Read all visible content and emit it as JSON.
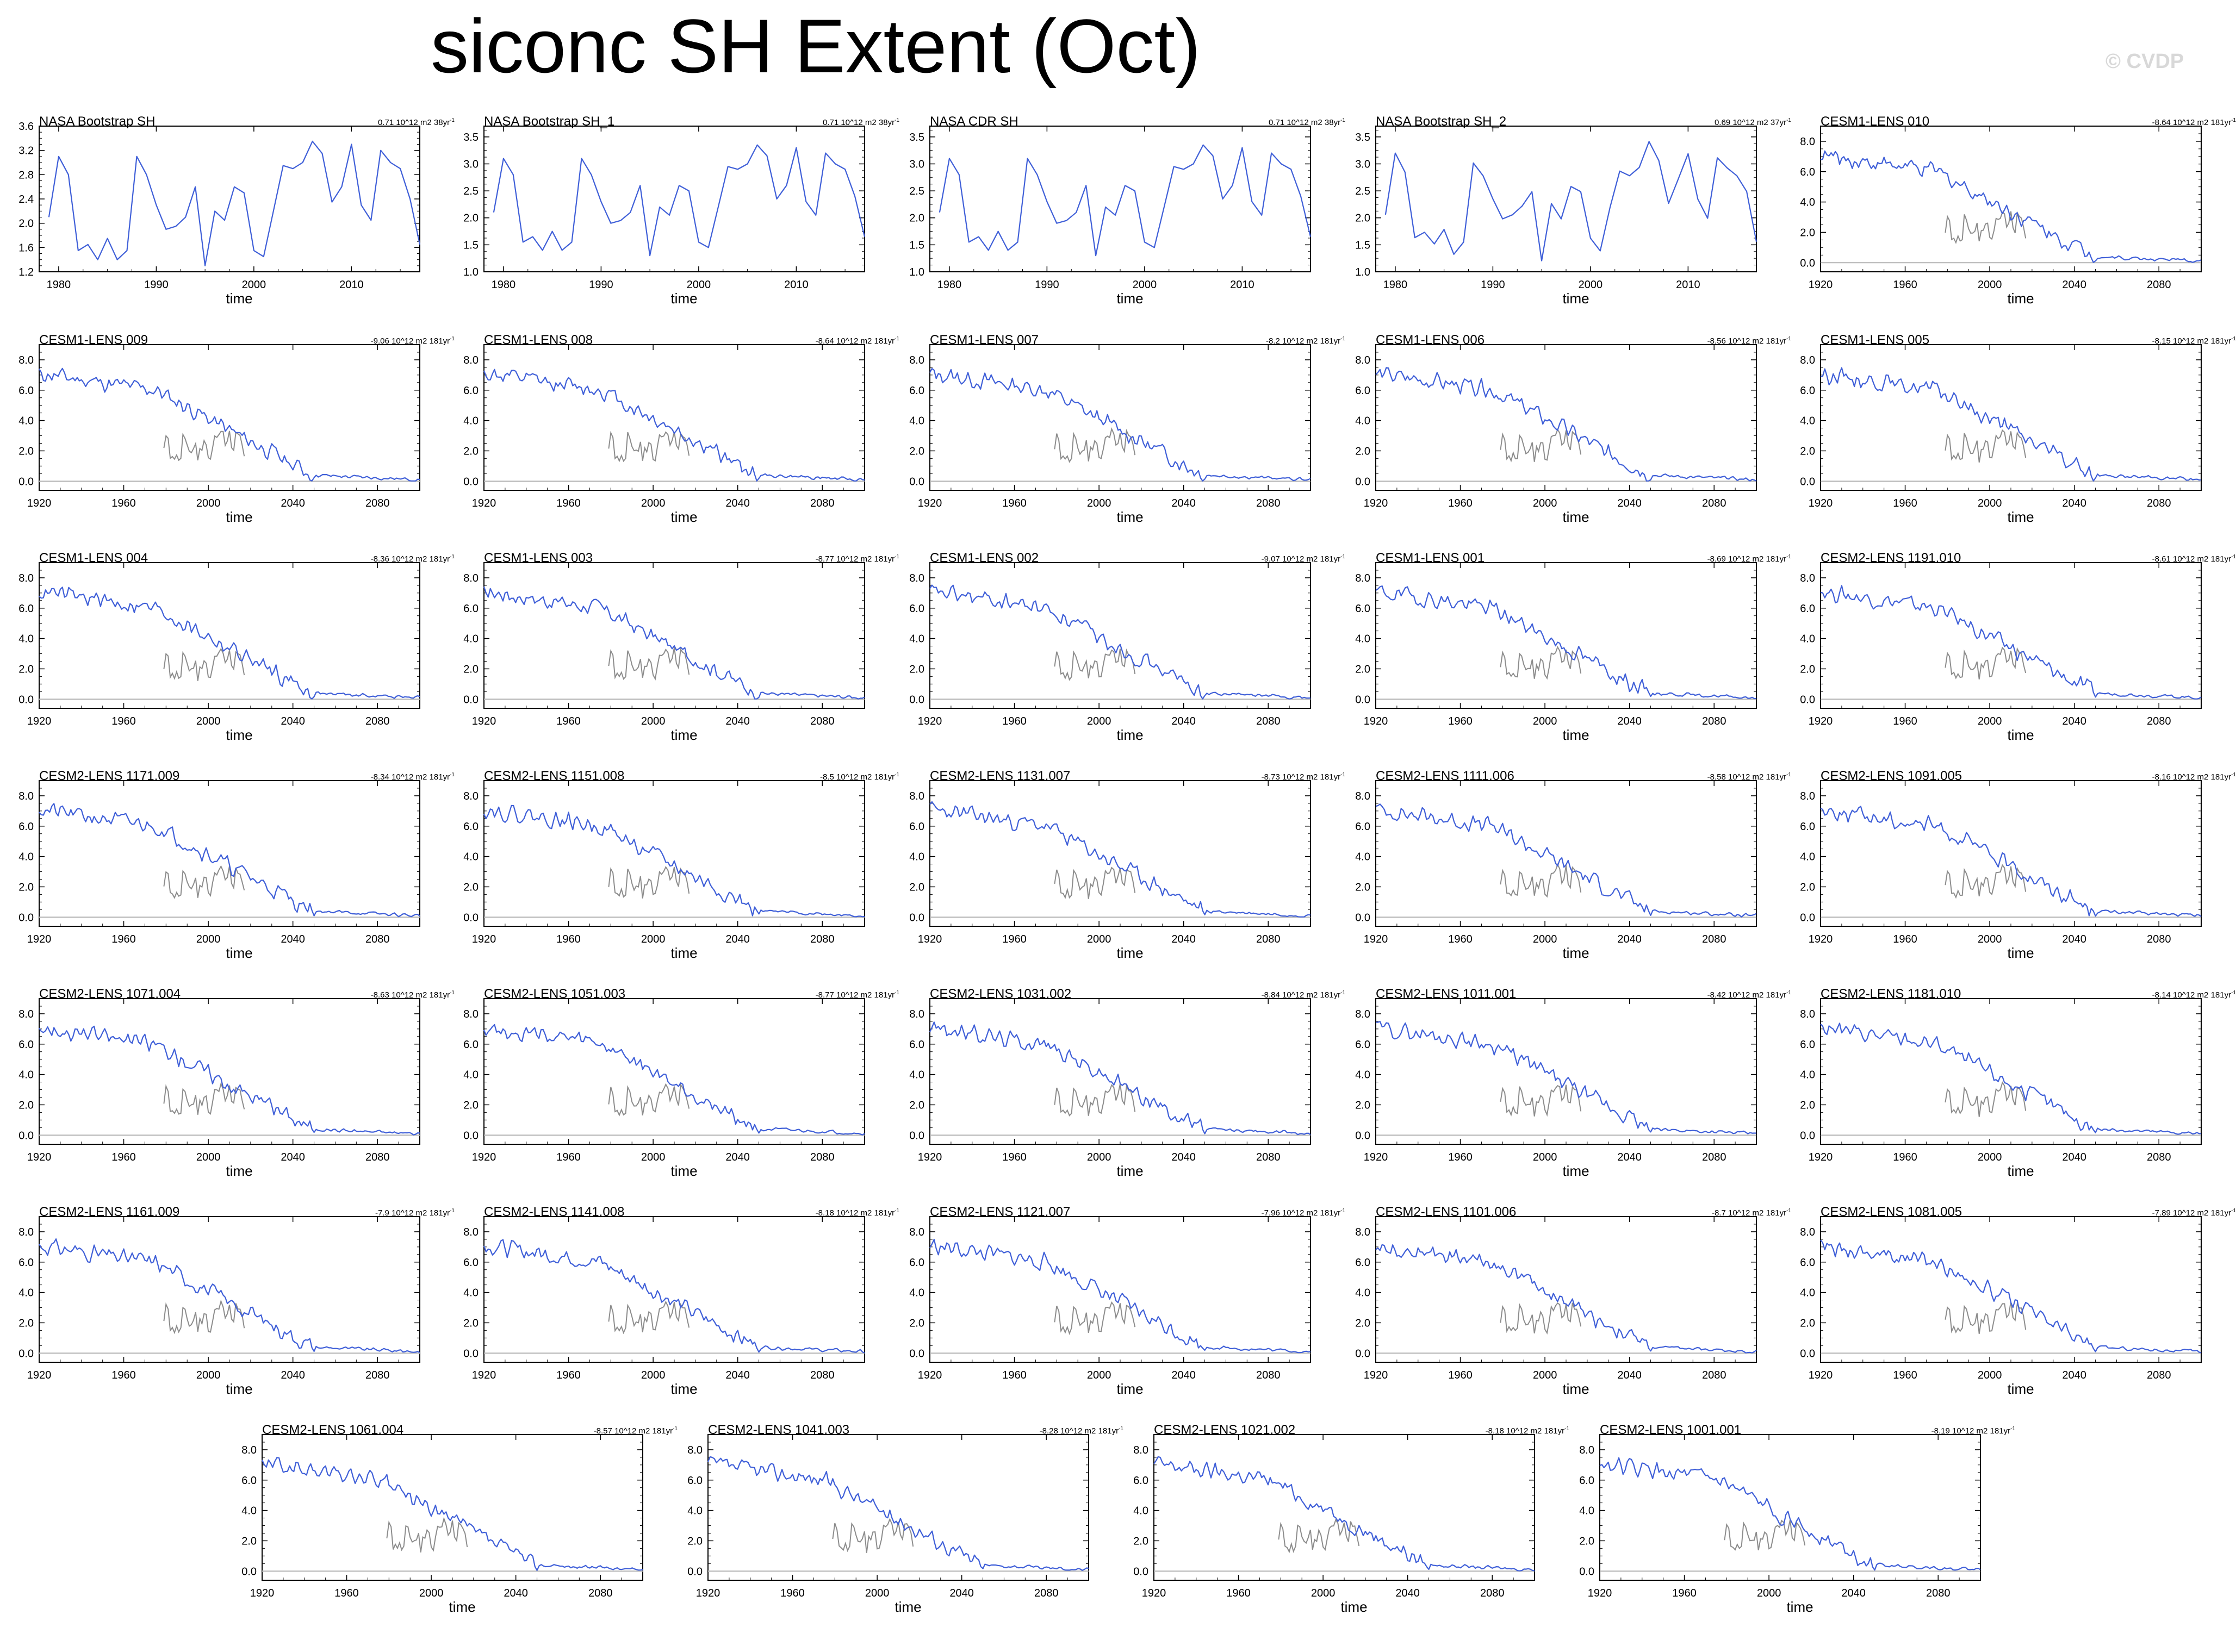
{
  "page": {
    "title": "siconc SH Extent (Oct)",
    "watermark": "© CVDP"
  },
  "chart_data": [
    {
      "type": "line",
      "title": "NASA Bootstrap SH",
      "trend": "0.71 10^12 m2 38yr",
      "trend_sup": "-1",
      "xlabel": "time",
      "xlim": [
        1978,
        2017
      ],
      "ylim": [
        1.2,
        3.6
      ],
      "yticks": [
        1.2,
        1.6,
        2.0,
        2.4,
        2.8,
        3.2,
        3.6
      ],
      "yfmt": 1,
      "xticks": [
        1980,
        1990,
        2000,
        2010
      ],
      "obs": true,
      "seed": 1
    },
    {
      "type": "line",
      "title": "NASA Bootstrap SH_1",
      "trend": "0.71 10^12 m2 38yr",
      "trend_sup": "-1",
      "xlabel": "time",
      "xlim": [
        1978,
        2017
      ],
      "ylim": [
        1.0,
        3.7
      ],
      "yticks": [
        1.0,
        1.5,
        2.0,
        2.5,
        3.0,
        3.5
      ],
      "yfmt": 1,
      "xticks": [
        1980,
        1990,
        2000,
        2010
      ],
      "obs": true,
      "seed": 1
    },
    {
      "type": "line",
      "title": "NASA CDR SH",
      "trend": "0.71 10^12 m2 38yr",
      "trend_sup": "-1",
      "xlabel": "time",
      "xlim": [
        1978,
        2017
      ],
      "ylim": [
        1.0,
        3.7
      ],
      "yticks": [
        1.0,
        1.5,
        2.0,
        2.5,
        3.0,
        3.5
      ],
      "yfmt": 1,
      "xticks": [
        1980,
        1990,
        2000,
        2010
      ],
      "obs": true,
      "seed": 1
    },
    {
      "type": "line",
      "title": "NASA Bootstrap SH_2",
      "trend": "0.69 10^12 m2 37yr",
      "trend_sup": "-1",
      "xlabel": "time",
      "xlim": [
        1978,
        2017
      ],
      "ylim": [
        1.0,
        3.7
      ],
      "yticks": [
        1.0,
        1.5,
        2.0,
        2.5,
        3.0,
        3.5
      ],
      "yfmt": 1,
      "xticks": [
        1980,
        1990,
        2000,
        2010
      ],
      "obs": true,
      "seed": 2
    },
    {
      "type": "line",
      "title": "CESM1-LENS 010",
      "trend": "-8.64 10^12 m2 181yr",
      "trend_sup": "-1",
      "xlabel": "time",
      "xlim": [
        1920,
        2100
      ],
      "ylim": [
        -0.6,
        9.0
      ],
      "yticks": [
        0.0,
        2.0,
        4.0,
        6.0,
        8.0
      ],
      "yfmt": 1,
      "xticks": [
        1920,
        1960,
        2000,
        2040,
        2080
      ],
      "obs": false,
      "seed": 10
    },
    {
      "type": "line",
      "title": "CESM1-LENS 009",
      "trend": "-9.06 10^12 m2 181yr",
      "trend_sup": "-1",
      "xlabel": "time",
      "xlim": [
        1920,
        2100
      ],
      "ylim": [
        -0.6,
        9.0
      ],
      "yticks": [
        0.0,
        2.0,
        4.0,
        6.0,
        8.0
      ],
      "yfmt": 1,
      "xticks": [
        1920,
        1960,
        2000,
        2040,
        2080
      ],
      "obs": false,
      "seed": 11
    },
    {
      "type": "line",
      "title": "CESM1-LENS 008",
      "trend": "-8.64 10^12 m2 181yr",
      "trend_sup": "-1",
      "xlabel": "time",
      "xlim": [
        1920,
        2100
      ],
      "ylim": [
        -0.6,
        9.0
      ],
      "yticks": [
        0.0,
        2.0,
        4.0,
        6.0,
        8.0
      ],
      "yfmt": 1,
      "xticks": [
        1920,
        1960,
        2000,
        2040,
        2080
      ],
      "obs": false,
      "seed": 12
    },
    {
      "type": "line",
      "title": "CESM1-LENS 007",
      "trend": "-8.2 10^12 m2 181yr",
      "trend_sup": "-1",
      "xlabel": "time",
      "xlim": [
        1920,
        2100
      ],
      "ylim": [
        -0.6,
        9.0
      ],
      "yticks": [
        0.0,
        2.0,
        4.0,
        6.0,
        8.0
      ],
      "yfmt": 1,
      "xticks": [
        1920,
        1960,
        2000,
        2040,
        2080
      ],
      "obs": false,
      "seed": 13
    },
    {
      "type": "line",
      "title": "CESM1-LENS 006",
      "trend": "-8.56 10^12 m2 181yr",
      "trend_sup": "-1",
      "xlabel": "time",
      "xlim": [
        1920,
        2100
      ],
      "ylim": [
        -0.6,
        9.0
      ],
      "yticks": [
        0.0,
        2.0,
        4.0,
        6.0,
        8.0
      ],
      "yfmt": 1,
      "xticks": [
        1920,
        1960,
        2000,
        2040,
        2080
      ],
      "obs": false,
      "seed": 14
    },
    {
      "type": "line",
      "title": "CESM1-LENS 005",
      "trend": "-8.15 10^12 m2 181yr",
      "trend_sup": "-1",
      "xlabel": "time",
      "xlim": [
        1920,
        2100
      ],
      "ylim": [
        -0.6,
        9.0
      ],
      "yticks": [
        0.0,
        2.0,
        4.0,
        6.0,
        8.0
      ],
      "yfmt": 1,
      "xticks": [
        1920,
        1960,
        2000,
        2040,
        2080
      ],
      "obs": false,
      "seed": 15
    },
    {
      "type": "line",
      "title": "CESM1-LENS 004",
      "trend": "-8.36 10^12 m2 181yr",
      "trend_sup": "-1",
      "xlabel": "time",
      "xlim": [
        1920,
        2100
      ],
      "ylim": [
        -0.6,
        9.0
      ],
      "yticks": [
        0.0,
        2.0,
        4.0,
        6.0,
        8.0
      ],
      "yfmt": 1,
      "xticks": [
        1920,
        1960,
        2000,
        2040,
        2080
      ],
      "obs": false,
      "seed": 16
    },
    {
      "type": "line",
      "title": "CESM1-LENS 003",
      "trend": "-8.77 10^12 m2 181yr",
      "trend_sup": "-1",
      "xlabel": "time",
      "xlim": [
        1920,
        2100
      ],
      "ylim": [
        -0.6,
        9.0
      ],
      "yticks": [
        0.0,
        2.0,
        4.0,
        6.0,
        8.0
      ],
      "yfmt": 1,
      "xticks": [
        1920,
        1960,
        2000,
        2040,
        2080
      ],
      "obs": false,
      "seed": 17
    },
    {
      "type": "line",
      "title": "CESM1-LENS 002",
      "trend": "-9.07 10^12 m2 181yr",
      "trend_sup": "-1",
      "xlabel": "time",
      "xlim": [
        1920,
        2100
      ],
      "ylim": [
        -0.6,
        9.0
      ],
      "yticks": [
        0.0,
        2.0,
        4.0,
        6.0,
        8.0
      ],
      "yfmt": 1,
      "xticks": [
        1920,
        1960,
        2000,
        2040,
        2080
      ],
      "obs": false,
      "seed": 18
    },
    {
      "type": "line",
      "title": "CESM1-LENS 001",
      "trend": "-8.69 10^12 m2 181yr",
      "trend_sup": "-1",
      "xlabel": "time",
      "xlim": [
        1920,
        2100
      ],
      "ylim": [
        -0.6,
        9.0
      ],
      "yticks": [
        0.0,
        2.0,
        4.0,
        6.0,
        8.0
      ],
      "yfmt": 1,
      "xticks": [
        1920,
        1960,
        2000,
        2040,
        2080
      ],
      "obs": false,
      "seed": 19
    },
    {
      "type": "line",
      "title": "CESM2-LENS 1191.010",
      "trend": "-8.61 10^12 m2 181yr",
      "trend_sup": "-1",
      "xlabel": "time",
      "xlim": [
        1920,
        2100
      ],
      "ylim": [
        -0.6,
        9.0
      ],
      "yticks": [
        0.0,
        2.0,
        4.0,
        6.0,
        8.0
      ],
      "yfmt": 1,
      "xticks": [
        1920,
        1960,
        2000,
        2040,
        2080
      ],
      "obs": false,
      "seed": 20
    },
    {
      "type": "line",
      "title": "CESM2-LENS 1171.009",
      "trend": "-8.34 10^12 m2 181yr",
      "trend_sup": "-1",
      "xlabel": "time",
      "xlim": [
        1920,
        2100
      ],
      "ylim": [
        -0.6,
        9.0
      ],
      "yticks": [
        0.0,
        2.0,
        4.0,
        6.0,
        8.0
      ],
      "yfmt": 1,
      "xticks": [
        1920,
        1960,
        2000,
        2040,
        2080
      ],
      "obs": false,
      "seed": 21
    },
    {
      "type": "line",
      "title": "CESM2-LENS 1151.008",
      "trend": "-8.5 10^12 m2 181yr",
      "trend_sup": "-1",
      "xlabel": "time",
      "xlim": [
        1920,
        2100
      ],
      "ylim": [
        -0.6,
        9.0
      ],
      "yticks": [
        0.0,
        2.0,
        4.0,
        6.0,
        8.0
      ],
      "yfmt": 1,
      "xticks": [
        1920,
        1960,
        2000,
        2040,
        2080
      ],
      "obs": false,
      "seed": 22
    },
    {
      "type": "line",
      "title": "CESM2-LENS 1131.007",
      "trend": "-8.73 10^12 m2 181yr",
      "trend_sup": "-1",
      "xlabel": "time",
      "xlim": [
        1920,
        2100
      ],
      "ylim": [
        -0.6,
        9.0
      ],
      "yticks": [
        0.0,
        2.0,
        4.0,
        6.0,
        8.0
      ],
      "yfmt": 1,
      "xticks": [
        1920,
        1960,
        2000,
        2040,
        2080
      ],
      "obs": false,
      "seed": 23
    },
    {
      "type": "line",
      "title": "CESM2-LENS 1111.006",
      "trend": "-8.58 10^12 m2 181yr",
      "trend_sup": "-1",
      "xlabel": "time",
      "xlim": [
        1920,
        2100
      ],
      "ylim": [
        -0.6,
        9.0
      ],
      "yticks": [
        0.0,
        2.0,
        4.0,
        6.0,
        8.0
      ],
      "yfmt": 1,
      "xticks": [
        1920,
        1960,
        2000,
        2040,
        2080
      ],
      "obs": false,
      "seed": 24
    },
    {
      "type": "line",
      "title": "CESM2-LENS 1091.005",
      "trend": "-8.16 10^12 m2 181yr",
      "trend_sup": "-1",
      "xlabel": "time",
      "xlim": [
        1920,
        2100
      ],
      "ylim": [
        -0.6,
        9.0
      ],
      "yticks": [
        0.0,
        2.0,
        4.0,
        6.0,
        8.0
      ],
      "yfmt": 1,
      "xticks": [
        1920,
        1960,
        2000,
        2040,
        2080
      ],
      "obs": false,
      "seed": 25
    },
    {
      "type": "line",
      "title": "CESM2-LENS 1071.004",
      "trend": "-8.63 10^12 m2 181yr",
      "trend_sup": "-1",
      "xlabel": "time",
      "xlim": [
        1920,
        2100
      ],
      "ylim": [
        -0.6,
        9.0
      ],
      "yticks": [
        0.0,
        2.0,
        4.0,
        6.0,
        8.0
      ],
      "yfmt": 1,
      "xticks": [
        1920,
        1960,
        2000,
        2040,
        2080
      ],
      "obs": false,
      "seed": 26
    },
    {
      "type": "line",
      "title": "CESM2-LENS 1051.003",
      "trend": "-8.77 10^12 m2 181yr",
      "trend_sup": "-1",
      "xlabel": "time",
      "xlim": [
        1920,
        2100
      ],
      "ylim": [
        -0.6,
        9.0
      ],
      "yticks": [
        0.0,
        2.0,
        4.0,
        6.0,
        8.0
      ],
      "yfmt": 1,
      "xticks": [
        1920,
        1960,
        2000,
        2040,
        2080
      ],
      "obs": false,
      "seed": 27
    },
    {
      "type": "line",
      "title": "CESM2-LENS 1031.002",
      "trend": "-8.84 10^12 m2 181yr",
      "trend_sup": "-1",
      "xlabel": "time",
      "xlim": [
        1920,
        2100
      ],
      "ylim": [
        -0.6,
        9.0
      ],
      "yticks": [
        0.0,
        2.0,
        4.0,
        6.0,
        8.0
      ],
      "yfmt": 1,
      "xticks": [
        1920,
        1960,
        2000,
        2040,
        2080
      ],
      "obs": false,
      "seed": 28
    },
    {
      "type": "line",
      "title": "CESM2-LENS 1011.001",
      "trend": "-8.42 10^12 m2 181yr",
      "trend_sup": "-1",
      "xlabel": "time",
      "xlim": [
        1920,
        2100
      ],
      "ylim": [
        -0.6,
        9.0
      ],
      "yticks": [
        0.0,
        2.0,
        4.0,
        6.0,
        8.0
      ],
      "yfmt": 1,
      "xticks": [
        1920,
        1960,
        2000,
        2040,
        2080
      ],
      "obs": false,
      "seed": 29
    },
    {
      "type": "line",
      "title": "CESM2-LENS 1181.010",
      "trend": "-8.14 10^12 m2 181yr",
      "trend_sup": "-1",
      "xlabel": "time",
      "xlim": [
        1920,
        2100
      ],
      "ylim": [
        -0.6,
        9.0
      ],
      "yticks": [
        0.0,
        2.0,
        4.0,
        6.0,
        8.0
      ],
      "yfmt": 1,
      "xticks": [
        1920,
        1960,
        2000,
        2040,
        2080
      ],
      "obs": false,
      "seed": 30
    },
    {
      "type": "line",
      "title": "CESM2-LENS 1161.009",
      "trend": "-7.9 10^12 m2 181yr",
      "trend_sup": "-1",
      "xlabel": "time",
      "xlim": [
        1920,
        2100
      ],
      "ylim": [
        -0.6,
        9.0
      ],
      "yticks": [
        0.0,
        2.0,
        4.0,
        6.0,
        8.0
      ],
      "yfmt": 1,
      "xticks": [
        1920,
        1960,
        2000,
        2040,
        2080
      ],
      "obs": false,
      "seed": 31
    },
    {
      "type": "line",
      "title": "CESM2-LENS 1141.008",
      "trend": "-8.18 10^12 m2 181yr",
      "trend_sup": "-1",
      "xlabel": "time",
      "xlim": [
        1920,
        2100
      ],
      "ylim": [
        -0.6,
        9.0
      ],
      "yticks": [
        0.0,
        2.0,
        4.0,
        6.0,
        8.0
      ],
      "yfmt": 1,
      "xticks": [
        1920,
        1960,
        2000,
        2040,
        2080
      ],
      "obs": false,
      "seed": 32
    },
    {
      "type": "line",
      "title": "CESM2-LENS 1121.007",
      "trend": "-7.96 10^12 m2 181yr",
      "trend_sup": "-1",
      "xlabel": "time",
      "xlim": [
        1920,
        2100
      ],
      "ylim": [
        -0.6,
        9.0
      ],
      "yticks": [
        0.0,
        2.0,
        4.0,
        6.0,
        8.0
      ],
      "yfmt": 1,
      "xticks": [
        1920,
        1960,
        2000,
        2040,
        2080
      ],
      "obs": false,
      "seed": 33
    },
    {
      "type": "line",
      "title": "CESM2-LENS 1101.006",
      "trend": "-8.7 10^12 m2 181yr",
      "trend_sup": "-1",
      "xlabel": "time",
      "xlim": [
        1920,
        2100
      ],
      "ylim": [
        -0.6,
        9.0
      ],
      "yticks": [
        0.0,
        2.0,
        4.0,
        6.0,
        8.0
      ],
      "yfmt": 1,
      "xticks": [
        1920,
        1960,
        2000,
        2040,
        2080
      ],
      "obs": false,
      "seed": 34
    },
    {
      "type": "line",
      "title": "CESM2-LENS 1081.005",
      "trend": "-7.89 10^12 m2 181yr",
      "trend_sup": "-1",
      "xlabel": "time",
      "xlim": [
        1920,
        2100
      ],
      "ylim": [
        -0.6,
        9.0
      ],
      "yticks": [
        0.0,
        2.0,
        4.0,
        6.0,
        8.0
      ],
      "yfmt": 1,
      "xticks": [
        1920,
        1960,
        2000,
        2040,
        2080
      ],
      "obs": false,
      "seed": 35
    },
    {
      "type": "line",
      "title": "CESM2-LENS 1061.004",
      "trend": "-8.57 10^12 m2 181yr",
      "trend_sup": "-1",
      "xlabel": "time",
      "xlim": [
        1920,
        2100
      ],
      "ylim": [
        -0.6,
        9.0
      ],
      "yticks": [
        0.0,
        2.0,
        4.0,
        6.0,
        8.0
      ],
      "yfmt": 1,
      "xticks": [
        1920,
        1960,
        2000,
        2040,
        2080
      ],
      "obs": false,
      "seed": 36
    },
    {
      "type": "line",
      "title": "CESM2-LENS 1041.003",
      "trend": "-8.28 10^12 m2 181yr",
      "trend_sup": "-1",
      "xlabel": "time",
      "xlim": [
        1920,
        2100
      ],
      "ylim": [
        -0.6,
        9.0
      ],
      "yticks": [
        0.0,
        2.0,
        4.0,
        6.0,
        8.0
      ],
      "yfmt": 1,
      "xticks": [
        1920,
        1960,
        2000,
        2040,
        2080
      ],
      "obs": false,
      "seed": 37
    },
    {
      "type": "line",
      "title": "CESM2-LENS 1021.002",
      "trend": "-8.18 10^12 m2 181yr",
      "trend_sup": "-1",
      "xlabel": "time",
      "xlim": [
        1920,
        2100
      ],
      "ylim": [
        -0.6,
        9.0
      ],
      "yticks": [
        0.0,
        2.0,
        4.0,
        6.0,
        8.0
      ],
      "yfmt": 1,
      "xticks": [
        1920,
        1960,
        2000,
        2040,
        2080
      ],
      "obs": false,
      "seed": 38
    },
    {
      "type": "line",
      "title": "CESM2-LENS 1001.001",
      "trend": "-8.19 10^12 m2 181yr",
      "trend_sup": "-1",
      "xlabel": "time",
      "xlim": [
        1920,
        2100
      ],
      "ylim": [
        -0.6,
        9.0
      ],
      "yticks": [
        0.0,
        2.0,
        4.0,
        6.0,
        8.0
      ],
      "yfmt": 1,
      "xticks": [
        1920,
        1960,
        2000,
        2040,
        2080
      ],
      "obs": false,
      "seed": 39
    }
  ],
  "obs_series": [
    2.1,
    3.1,
    2.8,
    1.55,
    1.65,
    1.4,
    1.75,
    1.4,
    1.55,
    3.1,
    2.8,
    2.3,
    1.9,
    1.95,
    2.1,
    2.6,
    1.3,
    2.2,
    2.05,
    2.6,
    2.5,
    1.55,
    1.45,
    2.2,
    2.95,
    2.9,
    3.0,
    3.35,
    3.15,
    2.35,
    2.6,
    3.3,
    2.3,
    2.05,
    3.2,
    3.0,
    2.9,
    2.4,
    1.65
  ],
  "colors": {
    "model_line": "#3f5fd8",
    "obs_overlay": "#8c8c8c",
    "obs_line": "#3f5fd8",
    "zero_line": "#b4b4b4",
    "axis": "#000000"
  }
}
